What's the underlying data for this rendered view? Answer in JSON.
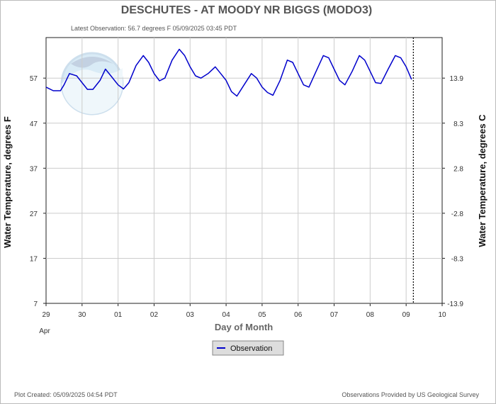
{
  "chart_data": {
    "type": "line",
    "title": "DESCHUTES - AT MOODY NR BIGGS  (MODO3)",
    "subtitle": "Latest Observation: 56.7 degrees F  05/09/2025 03:45 PDT",
    "ylabel": "Water Temperature, degrees F",
    "y2label": "Water Temperature, degrees C",
    "xlabel": "Day of Month",
    "ylim": [
      7,
      66
    ],
    "y_ticks": [
      7,
      17,
      27,
      37,
      47,
      57
    ],
    "y2_ticks": [
      "-13.9",
      "-8.3",
      "-2.8",
      "2.8",
      "8.3",
      "13.9"
    ],
    "x_ticks": [
      "29",
      "30",
      "01",
      "02",
      "03",
      "04",
      "05",
      "06",
      "07",
      "08",
      "09",
      "10"
    ],
    "x_sublabel": "Apr",
    "grid": true,
    "legend_position": "bottom",
    "latest_observation_day": 10.2,
    "series": [
      {
        "name": "Observation",
        "color": "#0000cc",
        "x": [
          0,
          0.2,
          0.4,
          0.5,
          0.65,
          0.85,
          1.0,
          1.15,
          1.3,
          1.5,
          1.65,
          1.8,
          2.0,
          2.15,
          2.3,
          2.5,
          2.7,
          2.85,
          3.0,
          3.15,
          3.3,
          3.5,
          3.7,
          3.85,
          4.0,
          4.15,
          4.3,
          4.5,
          4.7,
          4.85,
          5.0,
          5.15,
          5.3,
          5.5,
          5.7,
          5.85,
          6.0,
          6.15,
          6.3,
          6.5,
          6.7,
          6.85,
          7.0,
          7.15,
          7.3,
          7.5,
          7.7,
          7.85,
          8.0,
          8.15,
          8.3,
          8.5,
          8.7,
          8.85,
          9.0,
          9.15,
          9.3,
          9.5,
          9.7,
          9.85,
          10.0,
          10.15
        ],
        "y": [
          55.0,
          54.2,
          54.2,
          55.5,
          58.0,
          57.5,
          56.0,
          54.5,
          54.5,
          56.5,
          59.0,
          57.5,
          55.5,
          54.6,
          56.0,
          59.8,
          62.0,
          60.5,
          58.0,
          56.4,
          57.0,
          61.0,
          63.4,
          62.0,
          59.5,
          57.5,
          57.0,
          58.0,
          59.5,
          58.0,
          56.5,
          54.0,
          53.0,
          55.5,
          58.0,
          57.0,
          55.0,
          53.8,
          53.2,
          56.5,
          61.0,
          60.5,
          58.0,
          55.5,
          55.0,
          58.5,
          62.0,
          61.5,
          59.0,
          56.5,
          55.5,
          58.5,
          62.0,
          61.0,
          58.5,
          56.0,
          55.8,
          59.0,
          62.0,
          61.5,
          59.5,
          56.7
        ]
      }
    ]
  },
  "footer": {
    "created": "Plot Created: 05/09/2025 04:54 PDT",
    "provider": "Observations Provided by US Geological Survey"
  }
}
